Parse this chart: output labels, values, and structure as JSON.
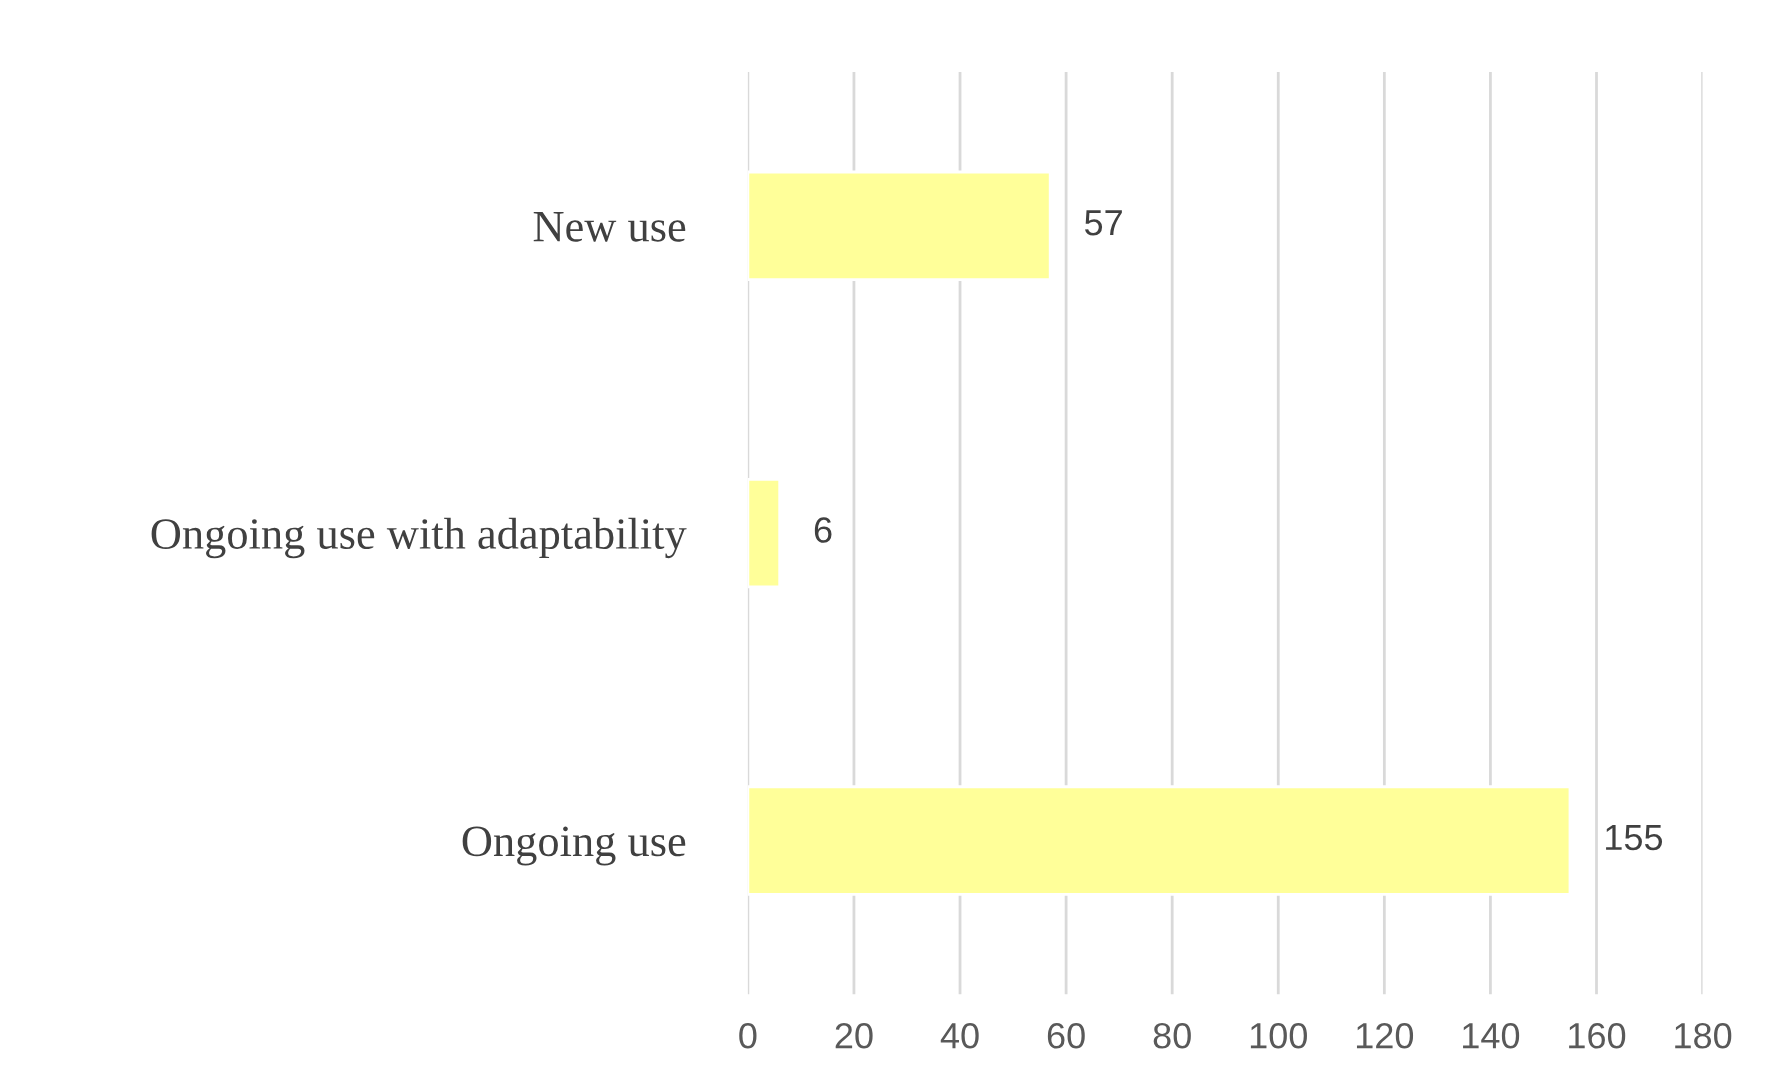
{
  "chart_data": {
    "type": "bar",
    "orientation": "horizontal",
    "categories": [
      "New use",
      "Ongoing use with adaptability",
      "Ongoing use"
    ],
    "values": [
      57,
      6,
      155
    ],
    "color": "#ffff99",
    "xlim": [
      0,
      180
    ],
    "xticks": [
      0,
      20,
      40,
      60,
      80,
      100,
      120,
      140,
      160,
      180
    ],
    "grid": "x",
    "data_labels": true
  }
}
